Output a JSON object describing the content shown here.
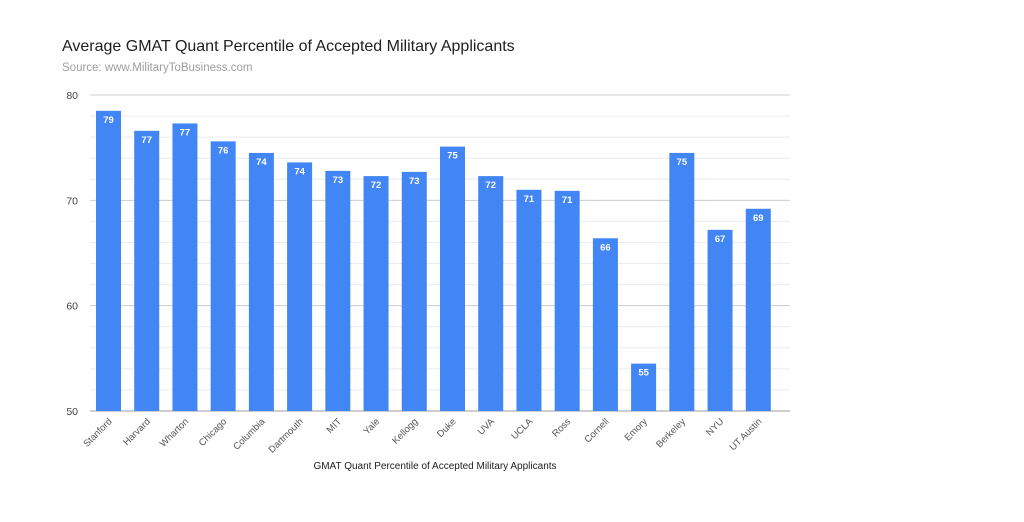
{
  "chart_data": {
    "type": "bar",
    "title": "Average GMAT Quant Percentile of Accepted Military Applicants",
    "subtitle": "Source: www.MilitaryToBusiness.com",
    "xlabel": "GMAT Quant Percentile of Accepted Military Applicants",
    "ylabel": "",
    "ylim": [
      50,
      80
    ],
    "yticks": [
      50,
      60,
      70,
      80
    ],
    "grid": true,
    "bar_color": "#4285f4",
    "categories": [
      "Stanford",
      "Harvard",
      "Wharton",
      "Chicago",
      "Columbia",
      "Dartmouth",
      "MIT",
      "Yale",
      "Kellogg",
      "Duke",
      "UVA",
      "UCLA",
      "Ross",
      "Cornell",
      "Emory",
      "Berkeley",
      "NYU",
      "UT Austin"
    ],
    "values": [
      78.5,
      76.6,
      77.3,
      75.6,
      74.5,
      73.6,
      72.8,
      72.3,
      72.7,
      75.1,
      72.3,
      71.0,
      70.9,
      66.4,
      54.5,
      74.5,
      67.2,
      69.2
    ],
    "data_labels": [
      "79",
      "77",
      "77",
      "76",
      "74",
      "74",
      "73",
      "72",
      "73",
      "75",
      "72",
      "71",
      "71",
      "66",
      "55",
      "75",
      "67",
      "69"
    ]
  }
}
